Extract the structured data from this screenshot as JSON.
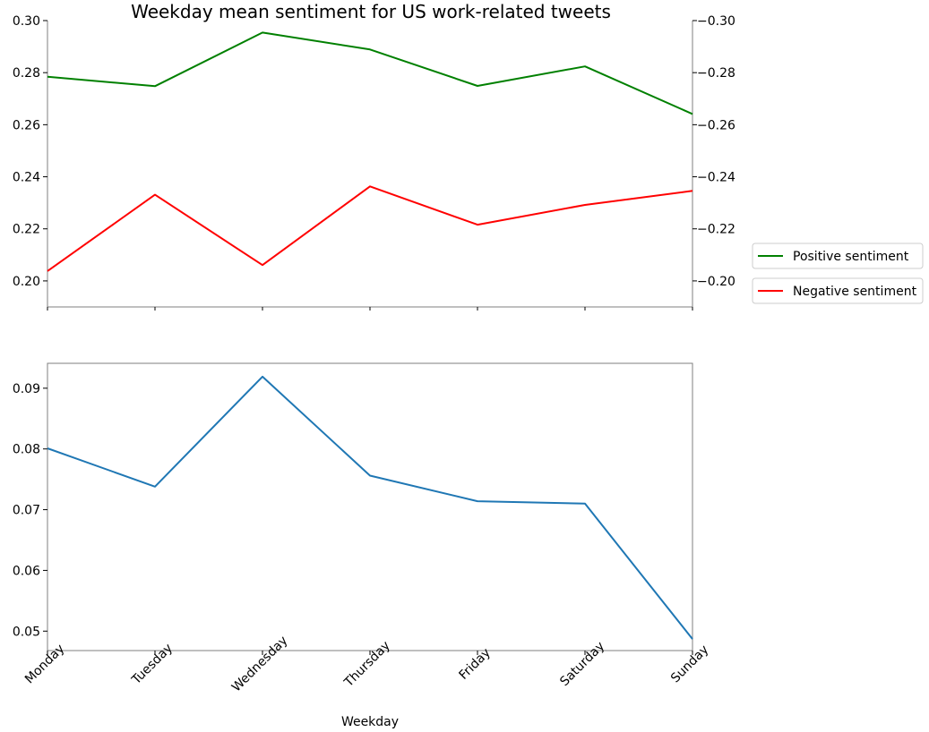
{
  "title": "Weekday mean sentiment for US work-related tweets",
  "chart_data": [
    {
      "type": "line",
      "title": "Weekday mean sentiment for US work-related tweets",
      "categories": [
        "Monday",
        "Tuesday",
        "Wednesday",
        "Thursday",
        "Friday",
        "Saturday",
        "Sunday"
      ],
      "xlabel": "",
      "left_axis": {
        "ylim": [
          0.19,
          0.3
        ],
        "ticks": [
          0.2,
          0.22,
          0.24,
          0.26,
          0.28,
          0.3
        ],
        "tick_labels": [
          "0.20",
          "0.22",
          "0.24",
          "0.26",
          "0.28",
          "0.30"
        ]
      },
      "right_axis": {
        "inverted": true,
        "ylim": [
          -0.19,
          -0.3
        ],
        "ticks": [
          -0.2,
          -0.22,
          -0.24,
          -0.26,
          -0.28,
          -0.3
        ],
        "tick_labels": [
          "−0.20",
          "−0.22",
          "−0.24",
          "−0.26",
          "−0.28",
          "−0.30"
        ]
      },
      "series": [
        {
          "name": "Positive sentiment",
          "axis": "left",
          "color": "#008000",
          "values": [
            0.2784,
            0.2748,
            0.2954,
            0.2889,
            0.2749,
            0.2824,
            0.2641
          ]
        },
        {
          "name": "Negative sentiment",
          "axis": "right",
          "color": "#ff0000",
          "values": [
            -0.2038,
            -0.2331,
            -0.2061,
            -0.2363,
            -0.2216,
            -0.2292,
            -0.2346
          ]
        }
      ],
      "legend": {
        "placement": "right",
        "entries": [
          "Positive sentiment",
          "Negative sentiment"
        ]
      },
      "grid": false
    },
    {
      "type": "line",
      "categories": [
        "Monday",
        "Tuesday",
        "Wednesday",
        "Thursday",
        "Friday",
        "Saturday",
        "Sunday"
      ],
      "xlabel": "Weekday",
      "ylabel": "",
      "ylim": [
        0.0468,
        0.0941
      ],
      "ticks": [
        0.05,
        0.06,
        0.07,
        0.08,
        0.09
      ],
      "tick_labels": [
        "0.05",
        "0.06",
        "0.07",
        "0.08",
        "0.09"
      ],
      "series": [
        {
          "color": "#1f77b4",
          "values": [
            0.0801,
            0.0738,
            0.0919,
            0.0756,
            0.0714,
            0.071,
            0.0487
          ]
        }
      ],
      "grid": false
    }
  ]
}
